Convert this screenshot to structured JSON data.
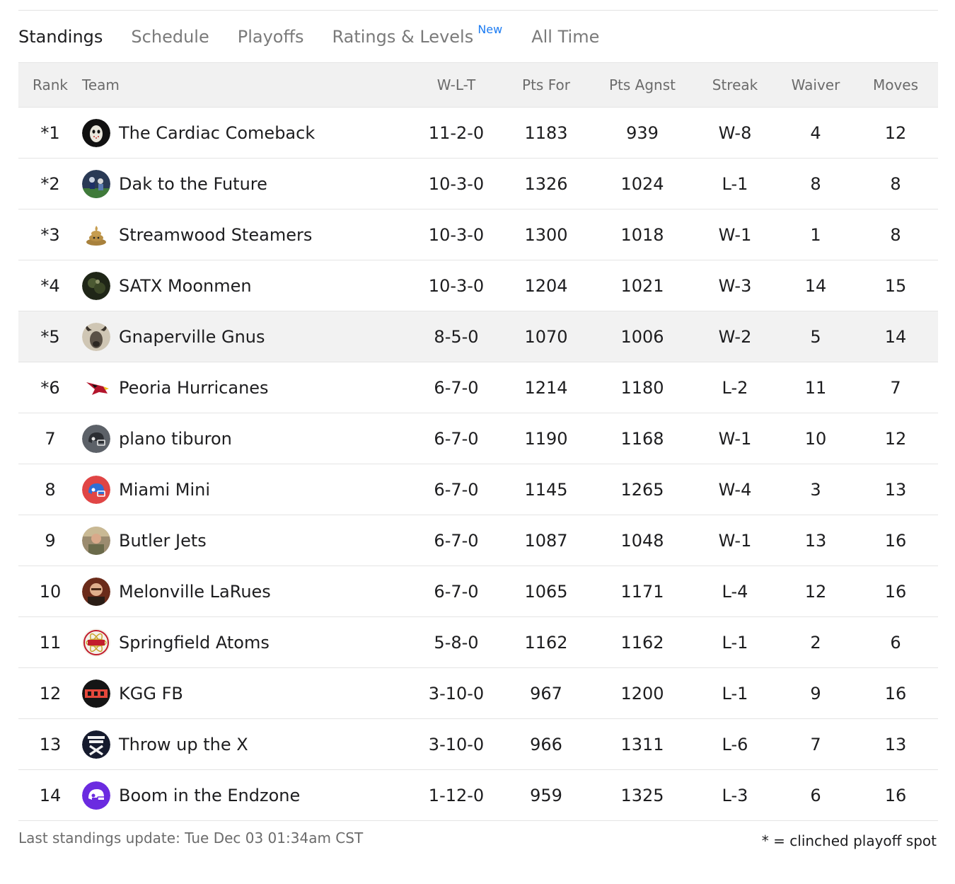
{
  "tabs": [
    {
      "label": "Standings",
      "active": true
    },
    {
      "label": "Schedule",
      "active": false
    },
    {
      "label": "Playoffs",
      "active": false
    },
    {
      "label": "Ratings & Levels",
      "badge": "New",
      "active": false
    },
    {
      "label": "All Time",
      "active": false
    }
  ],
  "table": {
    "headers": {
      "rank": "Rank",
      "team": "Team",
      "wlt": "W-L-T",
      "pts_for": "Pts For",
      "pts_agnst": "Pts Agnst",
      "streak": "Streak",
      "waiver": "Waiver",
      "moves": "Moves"
    },
    "rows": [
      {
        "rank": "*1",
        "team": "The Cardiac Comeback",
        "wlt": "11-2-0",
        "pts_for": "1183",
        "pts_agnst": "939",
        "streak": "W-8",
        "waiver": "4",
        "moves": "12",
        "logo": "hockey-mask-logo-icon"
      },
      {
        "rank": "*2",
        "team": "Dak to the Future",
        "wlt": "10-3-0",
        "pts_for": "1326",
        "pts_agnst": "1024",
        "streak": "L-1",
        "waiver": "8",
        "moves": "8",
        "logo": "football-photo-logo-icon"
      },
      {
        "rank": "*3",
        "team": "Streamwood Steamers",
        "wlt": "10-3-0",
        "pts_for": "1300",
        "pts_agnst": "1018",
        "streak": "W-1",
        "waiver": "1",
        "moves": "8",
        "logo": "poop-logo-icon"
      },
      {
        "rank": "*4",
        "team": "SATX Moonmen",
        "wlt": "10-3-0",
        "pts_for": "1204",
        "pts_agnst": "1021",
        "streak": "W-3",
        "waiver": "14",
        "moves": "15",
        "logo": "moonmen-photo-logo-icon"
      },
      {
        "rank": "*5",
        "team": "Gnaperville Gnus",
        "wlt": "8-5-0",
        "pts_for": "1070",
        "pts_agnst": "1006",
        "streak": "W-2",
        "waiver": "5",
        "moves": "14",
        "logo": "gnu-photo-logo-icon",
        "highlight": true
      },
      {
        "rank": "*6",
        "team": "Peoria Hurricanes",
        "wlt": "6-7-0",
        "pts_for": "1214",
        "pts_agnst": "1180",
        "streak": "L-2",
        "waiver": "11",
        "moves": "7",
        "logo": "cardinal-logo-icon"
      },
      {
        "rank": "7",
        "team": "plano tiburon",
        "wlt": "6-7-0",
        "pts_for": "1190",
        "pts_agnst": "1168",
        "streak": "W-1",
        "waiver": "10",
        "moves": "12",
        "logo": "gray-helmet-logo-icon"
      },
      {
        "rank": "8",
        "team": "Miami Mini",
        "wlt": "6-7-0",
        "pts_for": "1145",
        "pts_agnst": "1265",
        "streak": "W-4",
        "waiver": "3",
        "moves": "13",
        "logo": "red-helmet-logo-icon"
      },
      {
        "rank": "9",
        "team": "Butler Jets",
        "wlt": "6-7-0",
        "pts_for": "1087",
        "pts_agnst": "1048",
        "streak": "W-1",
        "waiver": "13",
        "moves": "16",
        "logo": "person-photo-logo-icon"
      },
      {
        "rank": "10",
        "team": "Melonville LaRues",
        "wlt": "6-7-0",
        "pts_for": "1065",
        "pts_agnst": "1171",
        "streak": "L-4",
        "waiver": "12",
        "moves": "16",
        "logo": "portrait-photo-logo-icon"
      },
      {
        "rank": "11",
        "team": "Springfield Atoms",
        "wlt": "5-8-0",
        "pts_for": "1162",
        "pts_agnst": "1162",
        "streak": "L-1",
        "waiver": "2",
        "moves": "6",
        "logo": "atoms-logo-icon"
      },
      {
        "rank": "12",
        "team": "KGG FB",
        "wlt": "3-10-0",
        "pts_for": "967",
        "pts_agnst": "1200",
        "streak": "L-1",
        "waiver": "9",
        "moves": "16",
        "logo": "kgg-logo-icon"
      },
      {
        "rank": "13",
        "team": "Throw up the X",
        "wlt": "3-10-0",
        "pts_for": "966",
        "pts_agnst": "1311",
        "streak": "L-6",
        "waiver": "7",
        "moves": "13",
        "logo": "throw-up-the-x-logo-icon"
      },
      {
        "rank": "14",
        "team": "Boom in the Endzone",
        "wlt": "1-12-0",
        "pts_for": "959",
        "pts_agnst": "1325",
        "streak": "L-3",
        "waiver": "6",
        "moves": "16",
        "logo": "purple-helmet-logo-icon"
      }
    ]
  },
  "footer": {
    "last_update": "Last standings update: Tue Dec 03 01:34am CST",
    "legend": "* = clinched playoff spot"
  },
  "colors": {
    "header_bg": "#f1f1f1",
    "highlight_row_bg": "#f2f2f2",
    "badge_blue": "#1d7cf2",
    "muted_text": "#6b6b6b"
  }
}
